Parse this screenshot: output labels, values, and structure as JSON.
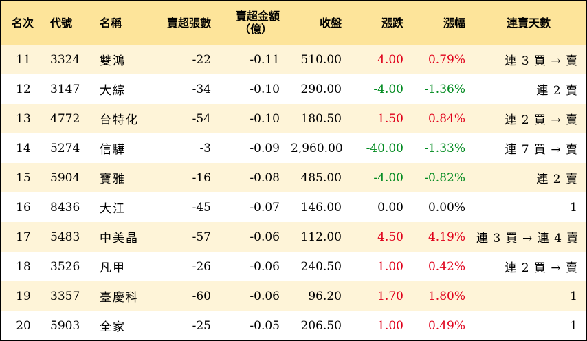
{
  "headers": {
    "rank": "名次",
    "code": "代號",
    "name": "名稱",
    "sell_lots": "賣超張數",
    "sell_amount_line1": "賣超金額",
    "sell_amount_line2": "（億）",
    "close": "收盤",
    "change": "漲跌",
    "change_pct": "漲幅",
    "streak": "連賣天數"
  },
  "colors": {
    "header_bg": "#fde49a",
    "odd_row_bg": "#fef4d8",
    "even_row_bg": "#ffffff",
    "up": "#e0001b",
    "down": "#008a1f"
  },
  "rows": [
    {
      "rank": "11",
      "code": "3324",
      "name": "雙鴻",
      "sell_lots": "-22",
      "sell_amount": "-0.11",
      "close": "510.00",
      "change": "4.00",
      "change_pct": "0.79%",
      "direction": "up",
      "streak": "連 3 買 → 賣"
    },
    {
      "rank": "12",
      "code": "3147",
      "name": "大綜",
      "sell_lots": "-34",
      "sell_amount": "-0.10",
      "close": "290.00",
      "change": "-4.00",
      "change_pct": "-1.36%",
      "direction": "down",
      "streak": "連 2 賣"
    },
    {
      "rank": "13",
      "code": "4772",
      "name": "台特化",
      "sell_lots": "-54",
      "sell_amount": "-0.10",
      "close": "180.50",
      "change": "1.50",
      "change_pct": "0.84%",
      "direction": "up",
      "streak": "連 2 買 → 賣"
    },
    {
      "rank": "14",
      "code": "5274",
      "name": "信驊",
      "sell_lots": "-3",
      "sell_amount": "-0.09",
      "close": "2,960.00",
      "change": "-40.00",
      "change_pct": "-1.33%",
      "direction": "down",
      "streak": "連 7 買 → 賣"
    },
    {
      "rank": "15",
      "code": "5904",
      "name": "寶雅",
      "sell_lots": "-16",
      "sell_amount": "-0.08",
      "close": "485.00",
      "change": "-4.00",
      "change_pct": "-0.82%",
      "direction": "down",
      "streak": "連 2 賣"
    },
    {
      "rank": "16",
      "code": "8436",
      "name": "大江",
      "sell_lots": "-45",
      "sell_amount": "-0.07",
      "close": "146.00",
      "change": "0.00",
      "change_pct": "0.00%",
      "direction": "flat",
      "streak": "1"
    },
    {
      "rank": "17",
      "code": "5483",
      "name": "中美晶",
      "sell_lots": "-57",
      "sell_amount": "-0.06",
      "close": "112.00",
      "change": "4.50",
      "change_pct": "4.19%",
      "direction": "up",
      "streak": "連 3 買 → 連 4 賣"
    },
    {
      "rank": "18",
      "code": "3526",
      "name": "凡甲",
      "sell_lots": "-26",
      "sell_amount": "-0.06",
      "close": "240.50",
      "change": "1.00",
      "change_pct": "0.42%",
      "direction": "up",
      "streak": "連 2 買 → 賣"
    },
    {
      "rank": "19",
      "code": "3357",
      "name": "臺慶科",
      "sell_lots": "-60",
      "sell_amount": "-0.06",
      "close": "96.20",
      "change": "1.70",
      "change_pct": "1.80%",
      "direction": "up",
      "streak": "1"
    },
    {
      "rank": "20",
      "code": "5903",
      "name": "全家",
      "sell_lots": "-25",
      "sell_amount": "-0.05",
      "close": "206.50",
      "change": "1.00",
      "change_pct": "0.49%",
      "direction": "up",
      "streak": "1"
    }
  ]
}
